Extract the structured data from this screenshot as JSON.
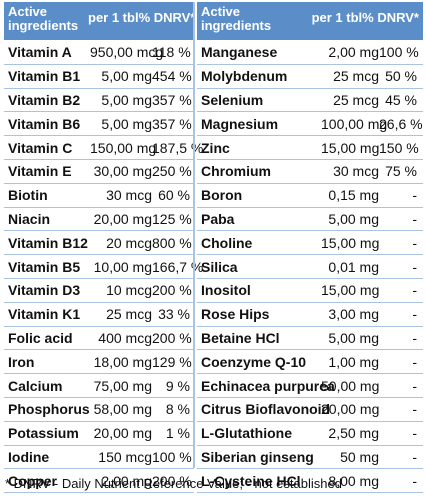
{
  "left": {
    "header": {
      "ingredients": "Active ingredients",
      "per_tbl": "per 1 tbl",
      "dnrv": "% DNRV*"
    },
    "rows": [
      {
        "name": "Vitamin A",
        "amount": "950,00 mcg",
        "dnrv": "118 %"
      },
      {
        "name": "Vitamin B1",
        "amount": "5,00 mg",
        "dnrv": "454 %"
      },
      {
        "name": "Vitamin B2",
        "amount": "5,00 mg",
        "dnrv": "357 %"
      },
      {
        "name": "Vitamin B6",
        "amount": "5,00 mg",
        "dnrv": "357 %"
      },
      {
        "name": "Vitamin C",
        "amount": "150,00 mg",
        "dnrv": "187,5 %"
      },
      {
        "name": "Vitamin E",
        "amount": "30,00 mg",
        "dnrv": "250 %"
      },
      {
        "name": "Biotin",
        "amount": "30 mcg",
        "dnrv": "60 %"
      },
      {
        "name": "Niacin",
        "amount": "20,00 mg",
        "dnrv": "125 %"
      },
      {
        "name": "Vitamin B12",
        "amount": "20 mcg",
        "dnrv": "800 %"
      },
      {
        "name": "Vitamin B5",
        "amount": "10,00 mg",
        "dnrv": "166,7 %"
      },
      {
        "name": "Vitamin D3",
        "amount": "10 mcg",
        "dnrv": "200 %"
      },
      {
        "name": "Vitamin K1",
        "amount": "25 mcg",
        "dnrv": "33 %"
      },
      {
        "name": "Folic acid",
        "amount": "400 mcg",
        "dnrv": "200 %"
      },
      {
        "name": "Iron",
        "amount": "18,00 mg",
        "dnrv": "129 %"
      },
      {
        "name": "Calcium",
        "amount": "75,00 mg",
        "dnrv": "9 %"
      },
      {
        "name": "Phosphorus",
        "amount": "58,00 mg",
        "dnrv": "8 %"
      },
      {
        "name": "Potassium",
        "amount": "20,00 mg",
        "dnrv": "1 %"
      },
      {
        "name": "Iodine",
        "amount": "150 mcg",
        "dnrv": "100 %"
      },
      {
        "name": "Copper",
        "amount": "2,00 mg",
        "dnrv": "200 %"
      }
    ]
  },
  "right": {
    "header": {
      "ingredients": "Active ingredients",
      "per_tbl": "per 1 tbl",
      "dnrv": "% DNRV*"
    },
    "rows": [
      {
        "name": "Manganese",
        "amount": "2,00 mg",
        "dnrv": "100 %"
      },
      {
        "name": "Molybdenum",
        "amount": "25 mcg",
        "dnrv": "50 %"
      },
      {
        "name": "Selenium",
        "amount": "25 mcg",
        "dnrv": "45 %"
      },
      {
        "name": "Magnesium",
        "amount": "100,00 mg",
        "dnrv": "26,6 %"
      },
      {
        "name": "Zinc",
        "amount": "15,00 mg",
        "dnrv": "150 %"
      },
      {
        "name": "Chromium",
        "amount": "30 mcg",
        "dnrv": "75 %"
      },
      {
        "name": "Boron",
        "amount": "0,15 mg",
        "dnrv": "-"
      },
      {
        "name": "Paba",
        "amount": "5,00 mg",
        "dnrv": "-"
      },
      {
        "name": "Choline",
        "amount": "15,00 mg",
        "dnrv": "-"
      },
      {
        "name": "Silica",
        "amount": "0,01 mg",
        "dnrv": "-"
      },
      {
        "name": "Inositol",
        "amount": "15,00 mg",
        "dnrv": "-"
      },
      {
        "name": "Rose Hips",
        "amount": "3,00 mg",
        "dnrv": "-"
      },
      {
        "name": "Betaine HCl",
        "amount": "5,00 mg",
        "dnrv": "-"
      },
      {
        "name": "Coenzyme Q-10",
        "amount": "1,00 mg",
        "dnrv": "-"
      },
      {
        "name": "Echinacea purpurea",
        "amount": "50,00 mg",
        "dnrv": "-"
      },
      {
        "name": "Citrus Bioflavonoid",
        "amount": "20,00 mg",
        "dnrv": "-"
      },
      {
        "name": "L-Glutathione",
        "amount": "2,50 mg",
        "dnrv": "-"
      },
      {
        "name": "Siberian ginseng",
        "amount": "50 mg",
        "dnrv": "-"
      },
      {
        "name": "L-Cysteine HCl",
        "amount": "8,00 mg",
        "dnrv": "-"
      }
    ]
  },
  "footnote": "* DNRV - Daily Nutrient Reference Value;  - not established",
  "colors": {
    "header_bg": "#5b8ec9",
    "row_line": "#a9c4e3"
  }
}
